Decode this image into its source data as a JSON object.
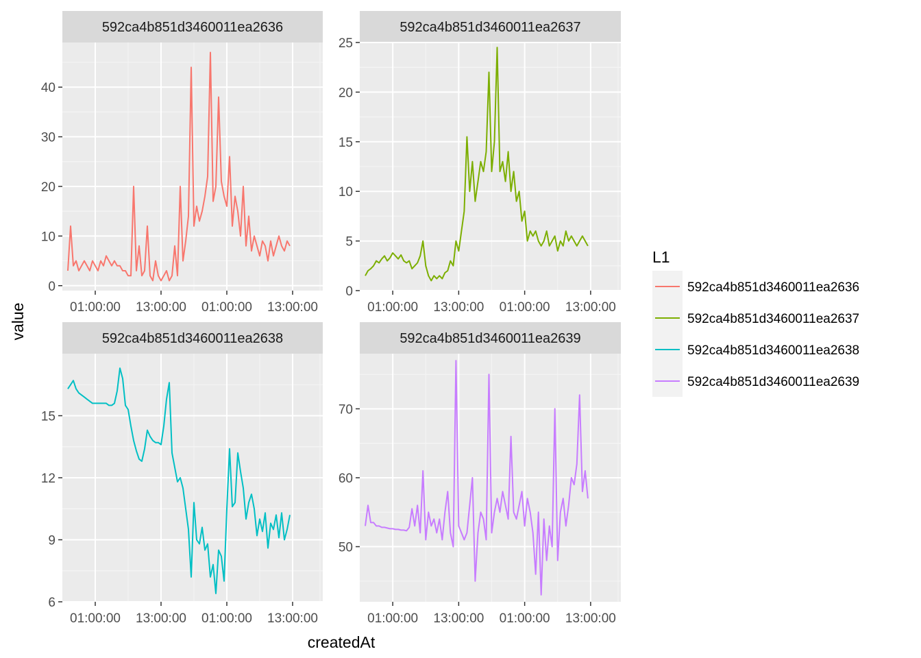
{
  "chart_data": {
    "type": "line",
    "xlabel": "createdAt",
    "ylabel": "value",
    "x_tick_labels": [
      "01:00:00",
      "13:00:00",
      "01:00:00",
      "13:00:00"
    ],
    "x_range_hours": [
      0,
      42
    ],
    "legend": {
      "title": "L1",
      "placement": "right",
      "entries": [
        {
          "label": "592ca4b851d3460011ea2636",
          "color": "#F8766D"
        },
        {
          "label": "592ca4b851d3460011ea2637",
          "color": "#7CAE00"
        },
        {
          "label": "592ca4b851d3460011ea2638",
          "color": "#00BFC4"
        },
        {
          "label": "592ca4b851d3460011ea2639",
          "color": "#C77CFF"
        }
      ]
    },
    "panels": [
      {
        "strip": "592ca4b851d3460011ea2636",
        "color": "#F8766D",
        "ylim": [
          -1,
          49
        ],
        "yticks": [
          0,
          10,
          20,
          30,
          40
        ],
        "x_hours": [
          0.5,
          1,
          1.5,
          2,
          2.5,
          3,
          3.5,
          4,
          4.5,
          5,
          5.5,
          6,
          6.5,
          7,
          7.5,
          8,
          8.5,
          9,
          9.5,
          10,
          10.5,
          11,
          11.5,
          12,
          12.5,
          13,
          13.5,
          14,
          14.5,
          15,
          15.5,
          16,
          16.5,
          17,
          17.5,
          18,
          18.5,
          19,
          19.5,
          20,
          20.5,
          21,
          21.5,
          22,
          22.5,
          23,
          23.5,
          24,
          24.5,
          25,
          25.5,
          26,
          26.5,
          27,
          27.5,
          28,
          28.5,
          29,
          29.5,
          30,
          30.5,
          31,
          31.5,
          32,
          32.5,
          33,
          33.5,
          34,
          34.5,
          35,
          35.5,
          36,
          36.5,
          37,
          37.5,
          38,
          38.5,
          39,
          39.5,
          40,
          40.5,
          41
        ],
        "values": [
          3,
          12,
          4,
          5,
          3,
          4,
          5,
          4,
          3,
          5,
          4,
          3,
          5,
          4,
          6,
          5,
          4,
          5,
          4,
          4,
          3,
          3,
          2,
          2,
          20,
          3,
          8,
          2,
          3,
          12,
          2,
          1,
          5,
          2,
          1,
          2,
          3,
          1,
          2,
          8,
          2,
          20,
          5,
          9,
          14,
          44,
          12,
          16,
          13,
          15,
          18,
          22,
          47,
          17,
          20,
          38,
          21,
          18,
          16,
          26,
          12,
          18,
          15,
          10,
          20,
          8,
          14,
          7,
          10,
          8,
          6,
          9,
          8,
          5,
          9,
          6,
          8,
          10,
          8,
          7,
          9,
          8
        ]
      },
      {
        "strip": "592ca4b851d3460011ea2637",
        "color": "#7CAE00",
        "ylim": [
          0,
          25
        ],
        "yticks": [
          0,
          5,
          10,
          15,
          20,
          25
        ],
        "x_hours": [
          0.5,
          1,
          1.5,
          2,
          2.5,
          3,
          3.5,
          4,
          4.5,
          5,
          5.5,
          6,
          6.5,
          7,
          7.5,
          8,
          8.5,
          9,
          9.5,
          10,
          10.5,
          11,
          11.5,
          12,
          12.5,
          13,
          13.5,
          14,
          14.5,
          15,
          15.5,
          16,
          16.5,
          17,
          17.5,
          18,
          18.5,
          19,
          19.5,
          20,
          20.5,
          21,
          21.5,
          22,
          22.5,
          23,
          23.5,
          24,
          24.5,
          25,
          25.5,
          26,
          26.5,
          27,
          27.5,
          28,
          28.5,
          29,
          29.5,
          30,
          30.5,
          31,
          31.5,
          32,
          32.5,
          33,
          33.5,
          34,
          34.5,
          35,
          35.5,
          36,
          36.5,
          37,
          37.5,
          38,
          38.5,
          39,
          39.5,
          40,
          40.5,
          41
        ],
        "values": [
          1.5,
          2,
          2.2,
          2.5,
          3,
          2.8,
          3.2,
          3.5,
          3,
          3.3,
          3.8,
          3.5,
          3.2,
          3.6,
          3,
          2.8,
          3,
          2.2,
          2.5,
          2.8,
          3.5,
          5,
          2.5,
          1.5,
          1,
          1.5,
          1.2,
          1.5,
          1.2,
          1.8,
          2,
          3,
          2.5,
          5,
          4,
          6,
          8,
          15.5,
          10,
          13,
          9,
          11,
          13,
          12,
          14,
          22,
          12,
          15,
          24.5,
          12,
          13,
          11,
          14,
          10,
          12,
          9,
          10,
          7,
          8,
          5,
          6,
          5.5,
          6,
          5,
          4.5,
          5,
          6,
          4.5,
          5,
          5.5,
          4,
          5,
          4.5,
          6,
          5,
          5.5,
          5,
          4.5,
          5,
          5.5,
          5,
          4.5
        ]
      },
      {
        "strip": "592ca4b851d3460011ea2638",
        "color": "#00BFC4",
        "ylim": [
          6,
          18
        ],
        "yticks": [
          6,
          9,
          12,
          15
        ],
        "x_hours": [
          0.5,
          1,
          1.5,
          2,
          2.5,
          3,
          3.5,
          4,
          4.5,
          5,
          5.5,
          6,
          6.5,
          7,
          7.5,
          8,
          8.5,
          9,
          9.5,
          10,
          10.5,
          11,
          11.5,
          12,
          12.5,
          13,
          13.5,
          14,
          14.5,
          15,
          15.5,
          16,
          16.5,
          17,
          17.5,
          18,
          18.5,
          19,
          19.5,
          20,
          20.5,
          21,
          21.5,
          22,
          22.5,
          23,
          23.5,
          24,
          24.5,
          25,
          25.5,
          26,
          26.5,
          27,
          27.5,
          28,
          28.5,
          29,
          29.5,
          30,
          30.5,
          31,
          31.5,
          32,
          32.5,
          33,
          33.5,
          34,
          34.5,
          35,
          35.5,
          36,
          36.5,
          37,
          37.5,
          38,
          38.5,
          39,
          39.5,
          40,
          40.5,
          41
        ],
        "values": [
          16.3,
          16.5,
          16.7,
          16.3,
          16.1,
          16,
          15.9,
          15.8,
          15.7,
          15.6,
          15.6,
          15.6,
          15.6,
          15.6,
          15.6,
          15.5,
          15.5,
          15.6,
          16.2,
          17.3,
          16.8,
          15.5,
          15.3,
          14.5,
          13.8,
          13.3,
          12.9,
          12.8,
          13.4,
          14.3,
          14,
          13.8,
          13.7,
          13.7,
          13.6,
          14.5,
          15.8,
          16.6,
          13.2,
          12.5,
          11.8,
          12,
          11.5,
          10.5,
          9.5,
          7.2,
          10.8,
          9,
          8.8,
          9.6,
          8.5,
          8.8,
          7.2,
          7.8,
          6.4,
          8.5,
          8.2,
          7,
          10.5,
          13.4,
          10.6,
          10.8,
          13.2,
          12.3,
          11.5,
          10,
          10.8,
          11.2,
          10.5,
          9.2,
          10,
          9.4,
          10.3,
          8.6,
          9.8,
          9.5,
          10.2,
          9.1,
          10.3,
          9,
          9.5,
          10.2
        ]
      },
      {
        "strip": "592ca4b851d3460011ea2639",
        "color": "#C77CFF",
        "ylim": [
          42,
          78
        ],
        "yticks": [
          50,
          60,
          70
        ],
        "x_hours": [
          0.5,
          1,
          1.5,
          2,
          2.5,
          3,
          3.5,
          4,
          4.5,
          5,
          5.5,
          6,
          6.5,
          7,
          7.5,
          8,
          8.5,
          9,
          9.5,
          10,
          10.5,
          11,
          11.5,
          12,
          12.5,
          13,
          13.5,
          14,
          14.5,
          15,
          15.5,
          16,
          16.5,
          17,
          17.5,
          18,
          18.5,
          19,
          19.5,
          20,
          20.5,
          21,
          21.5,
          22,
          22.5,
          23,
          23.5,
          24,
          24.5,
          25,
          25.5,
          26,
          26.5,
          27,
          27.5,
          28,
          28.5,
          29,
          29.5,
          30,
          30.5,
          31,
          31.5,
          32,
          32.5,
          33,
          33.5,
          34,
          34.5,
          35,
          35.5,
          36,
          36.5,
          37,
          37.5,
          38,
          38.5,
          39,
          39.5,
          40,
          40.5,
          41
        ],
        "values": [
          53,
          56,
          53.5,
          53.5,
          53,
          53,
          52.8,
          52.8,
          52.7,
          52.6,
          52.6,
          52.5,
          52.5,
          52.4,
          52.4,
          52.3,
          52.8,
          55.5,
          53,
          56,
          52,
          61,
          51,
          55,
          53,
          54,
          52,
          54,
          51,
          55,
          58,
          52,
          50,
          77,
          53,
          52,
          51,
          52,
          56,
          60,
          45,
          52,
          55,
          54,
          51,
          75,
          52,
          55,
          57,
          55,
          58,
          56,
          54,
          66,
          55,
          54,
          56,
          58,
          53,
          57,
          55,
          52,
          46,
          55,
          43,
          54,
          48,
          53,
          50,
          70,
          48,
          55,
          57,
          53,
          56,
          60,
          59,
          62,
          72,
          58,
          61,
          57
        ]
      }
    ]
  }
}
